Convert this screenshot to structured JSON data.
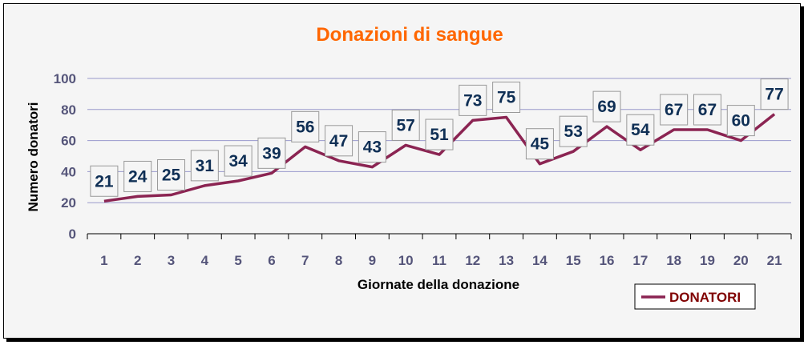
{
  "chart_data": {
    "type": "line",
    "title": "Donazioni di sangue",
    "xlabel": "Giornate della donazione",
    "ylabel": "Numero donatori",
    "categories": [
      "1",
      "2",
      "3",
      "4",
      "5",
      "6",
      "7",
      "8",
      "9",
      "10",
      "11",
      "12",
      "13",
      "14",
      "15",
      "16",
      "17",
      "18",
      "19",
      "20",
      "21"
    ],
    "series": [
      {
        "name": "DONATORI",
        "values": [
          21,
          24,
          25,
          31,
          34,
          39,
          56,
          47,
          43,
          57,
          51,
          73,
          75,
          45,
          53,
          69,
          54,
          67,
          67,
          60,
          77
        ]
      }
    ],
    "ylim": [
      0,
      100
    ],
    "yticks": [
      0,
      20,
      40,
      60,
      80,
      100
    ],
    "grid": true,
    "legend": "bottom-right",
    "colors": {
      "series": "#8b2452",
      "title": "#ff6600",
      "gridline": "#9999cc",
      "datalabel": "#0f2f55",
      "legend_text": "#800000"
    }
  }
}
